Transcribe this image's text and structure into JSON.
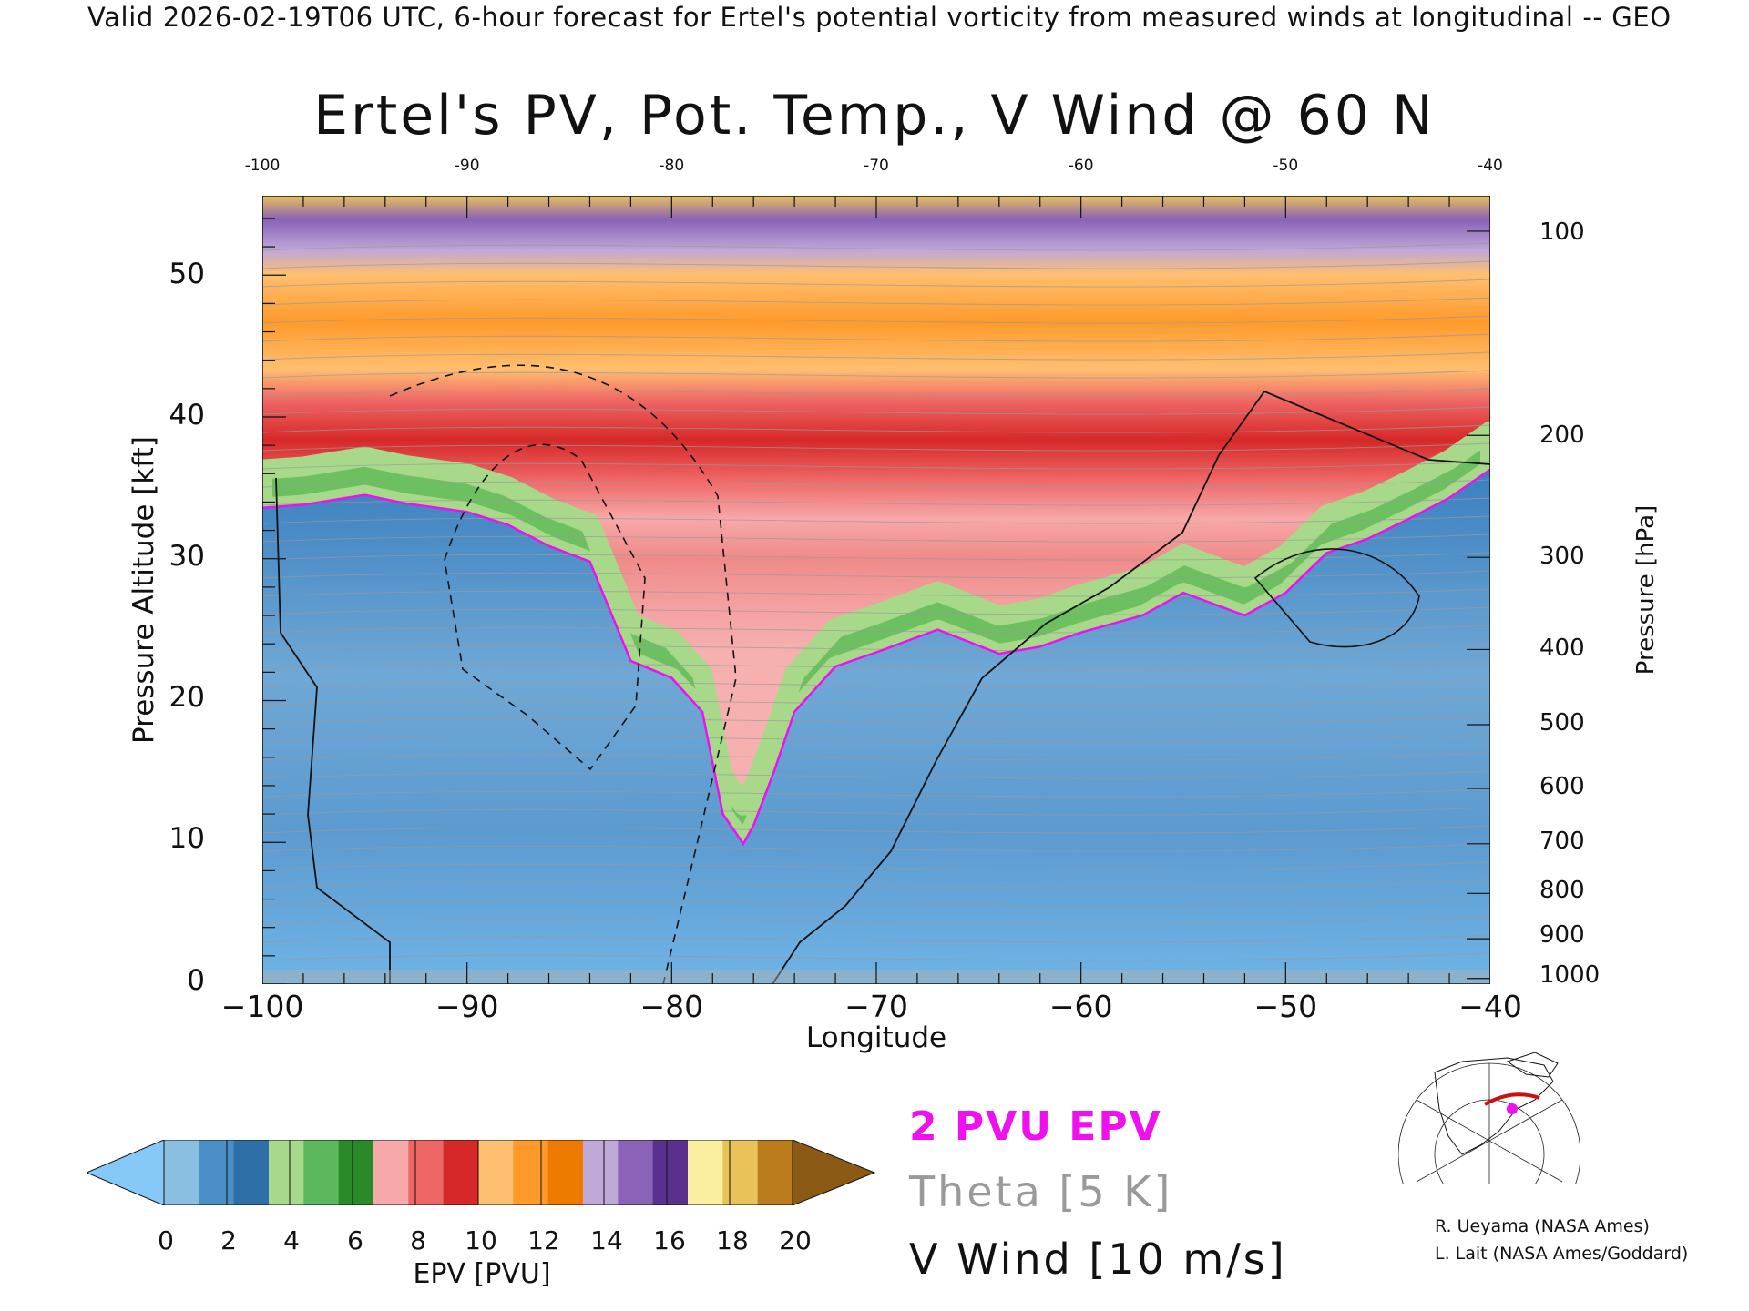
{
  "header": {
    "banner": "Valid 2026-02-19T06 UTC, 6-hour forecast for Ertel's potential vorticity from measured winds at longitudinal -- GEO"
  },
  "chart_data": {
    "type": "heatmap",
    "title": "Ertel's PV, Pot. Temp., V Wind @ 60 N",
    "xlabel": "Longitude",
    "ylabel": "Pressure Altitude [kft]",
    "ylabel_right": "Pressure [hPa]",
    "xlim": [
      -100,
      -40
    ],
    "ylim": [
      0,
      55.6
    ],
    "x_ticks": [
      -100,
      -90,
      -80,
      -70,
      -60,
      -50,
      -40
    ],
    "x_tick_labels": [
      "−100",
      "−90",
      "−80",
      "−70",
      "−60",
      "−50",
      "−40"
    ],
    "x_top_tick_labels": [
      "-100",
      "-90",
      "-80",
      "-70",
      "-60",
      "-50",
      "-40"
    ],
    "y_ticks": [
      0,
      10,
      20,
      30,
      40,
      50
    ],
    "y_tick_labels": [
      "0",
      "10",
      "20",
      "30",
      "40",
      "50"
    ],
    "pressure_ticks": [
      {
        "label": "100",
        "kft": 53.1
      },
      {
        "label": "200",
        "kft": 38.7
      },
      {
        "label": "300",
        "kft": 30.1
      },
      {
        "label": "400",
        "kft": 23.6
      },
      {
        "label": "500",
        "kft": 18.3
      },
      {
        "label": "600",
        "kft": 13.8
      },
      {
        "label": "700",
        "kft": 9.9
      },
      {
        "label": "800",
        "kft": 6.4
      },
      {
        "label": "900",
        "kft": 3.2
      },
      {
        "label": "1000",
        "kft": 0.4
      }
    ],
    "tropopause_2pvu_kft": {
      "lon": [
        -100,
        -98,
        -95,
        -93,
        -90,
        -88,
        -86,
        -84,
        -82,
        -80,
        -78.5,
        -77.5,
        -76.5,
        -76,
        -75,
        -74,
        -72,
        -70,
        -67,
        -64,
        -62,
        -60,
        -57,
        -55,
        -52,
        -50,
        -48,
        -46,
        -44,
        -42,
        -40
      ],
      "kft": [
        33.6,
        33.8,
        34.5,
        33.9,
        33.3,
        32.4,
        30.9,
        29.8,
        22.8,
        21.6,
        19.2,
        12.0,
        9.9,
        11.2,
        15.0,
        19.2,
        22.4,
        23.4,
        25.0,
        23.3,
        23.8,
        24.8,
        26.0,
        27.6,
        26.0,
        27.6,
        30.4,
        31.4,
        32.8,
        34.3,
        36.3
      ]
    },
    "colorbar": {
      "label": "EPV [PVU]",
      "ticks": [
        "0",
        "2",
        "4",
        "6",
        "8",
        "10",
        "12",
        "14",
        "16",
        "18",
        "20"
      ],
      "colors": [
        "#8bbfe2",
        "#4a8fc8",
        "#2e6fa8",
        "#a8d88a",
        "#5cb85c",
        "#2a8a2a",
        "#f7a8a8",
        "#ef6666",
        "#d62828",
        "#ffbf70",
        "#ff9a2a",
        "#ee7a00",
        "#c0a8d8",
        "#8a62b8",
        "#5a2f8e",
        "#fbeea0",
        "#e9c25a",
        "#ba7c1c"
      ],
      "under_color": "#86c8f8",
      "over_color": "#8b5a14"
    },
    "legend": [
      "2 PVU EPV",
      "Theta [5 K]",
      "V Wind [10 m/s]"
    ]
  },
  "legend": {
    "pvu": "2 PVU EPV",
    "theta": "Theta [5 K]",
    "vwind": "V Wind [10 m/s]"
  },
  "credits": {
    "line1": "R. Ueyama (NASA Ames)",
    "line2": "L. Lait (NASA Ames/Goddard)"
  },
  "colors": {
    "pvu_line": "#ee11ee",
    "theta_text": "#9a9a9a",
    "ground": "#b0b0b0"
  },
  "icons": {
    "locator": "polar-locator-map-icon"
  }
}
